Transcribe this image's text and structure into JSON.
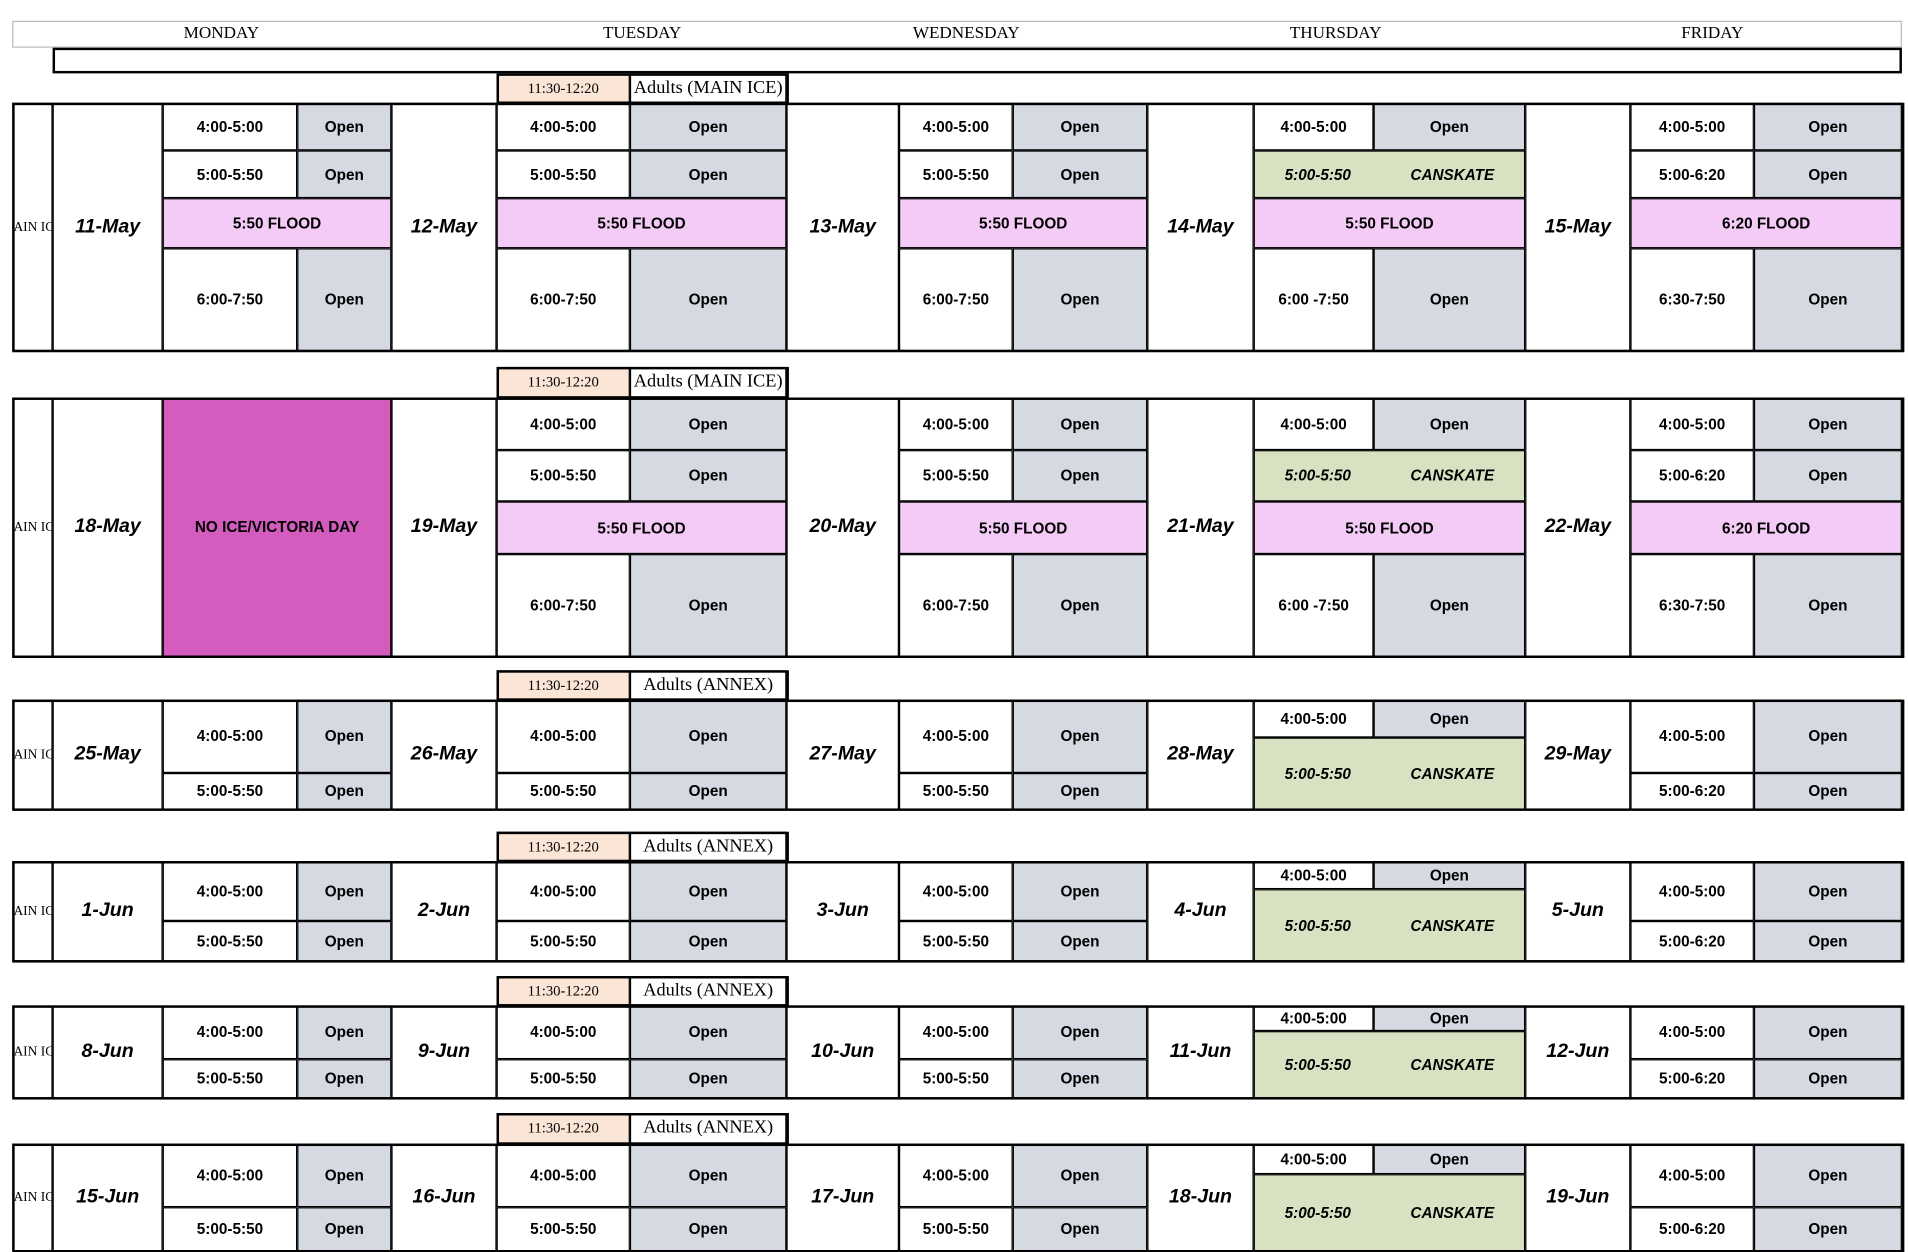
{
  "header": {
    "days": [
      "MONDAY",
      "TUESDAY",
      "WEDNESDAY",
      "THURSDAY",
      "FRIDAY"
    ]
  },
  "weeks": [
    {
      "rink": "AIN IC",
      "adults": {
        "time": "11:30-12:20",
        "label": "Adults (MAIN ICE)"
      },
      "days": [
        {
          "date": "11-May",
          "slots": [
            {
              "time": "4:00-5:00",
              "status": "Open"
            },
            {
              "time": "5:00-5:50",
              "status": "Open"
            },
            {
              "flood": "5:50 FLOOD"
            },
            {
              "time": "6:00-7:50",
              "status": "Open"
            }
          ]
        },
        {
          "date": "12-May",
          "slots": [
            {
              "time": "4:00-5:00",
              "status": "Open"
            },
            {
              "time": "5:00-5:50",
              "status": "Open"
            },
            {
              "flood": "5:50 FLOOD"
            },
            {
              "time": "6:00-7:50",
              "status": "Open"
            }
          ]
        },
        {
          "date": "13-May",
          "slots": [
            {
              "time": "4:00-5:00",
              "status": "Open"
            },
            {
              "time": "5:00-5:50",
              "status": "Open"
            },
            {
              "flood": "5:50 FLOOD"
            },
            {
              "time": "6:00-7:50",
              "status": "Open"
            }
          ]
        },
        {
          "date": "14-May",
          "slots": [
            {
              "time": "4:00-5:00",
              "status": "Open"
            },
            {
              "time": "5:00-5:50",
              "program": "CANSKATE"
            },
            {
              "flood": "5:50 FLOOD"
            },
            {
              "time": "6:00 -7:50",
              "status": "Open"
            }
          ]
        },
        {
          "date": "15-May",
          "slots": [
            {
              "time": "4:00-5:00",
              "status": "Open"
            },
            {
              "time": "5:00-6:20",
              "status": "Open"
            },
            {
              "flood": "6:20 FLOOD"
            },
            {
              "time": "6:30-7:50",
              "status": "Open"
            }
          ]
        }
      ]
    },
    {
      "rink": "AIN IC",
      "adults": {
        "time": "11:30-12:20",
        "label": "Adults (MAIN ICE)"
      },
      "days": [
        {
          "date": "18-May",
          "slots": [
            {
              "closed": "NO ICE/VICTORIA DAY"
            }
          ]
        },
        {
          "date": "19-May",
          "slots": [
            {
              "time": "4:00-5:00",
              "status": "Open"
            },
            {
              "time": "5:00-5:50",
              "status": "Open"
            },
            {
              "flood": "5:50 FLOOD"
            },
            {
              "time": "6:00-7:50",
              "status": "Open"
            }
          ]
        },
        {
          "date": "20-May",
          "slots": [
            {
              "time": "4:00-5:00",
              "status": "Open"
            },
            {
              "time": "5:00-5:50",
              "status": "Open"
            },
            {
              "flood": "5:50 FLOOD"
            },
            {
              "time": "6:00-7:50",
              "status": "Open"
            }
          ]
        },
        {
          "date": "21-May",
          "slots": [
            {
              "time": "4:00-5:00",
              "status": "Open"
            },
            {
              "time": "5:00-5:50",
              "program": "CANSKATE"
            },
            {
              "flood": "5:50 FLOOD"
            },
            {
              "time": "6:00 -7:50",
              "status": "Open"
            }
          ]
        },
        {
          "date": "22-May",
          "slots": [
            {
              "time": "4:00-5:00",
              "status": "Open"
            },
            {
              "time": "5:00-6:20",
              "status": "Open"
            },
            {
              "flood": "6:20 FLOOD"
            },
            {
              "time": "6:30-7:50",
              "status": "Open"
            }
          ]
        }
      ]
    },
    {
      "rink": "AIN IC",
      "adults": {
        "time": "11:30-12:20",
        "label": "Adults (ANNEX)"
      },
      "days": [
        {
          "date": "25-May",
          "slots": [
            {
              "time": "4:00-5:00",
              "status": "Open"
            },
            {
              "time": "5:00-5:50",
              "status": "Open"
            }
          ]
        },
        {
          "date": "26-May",
          "slots": [
            {
              "time": "4:00-5:00",
              "status": "Open"
            },
            {
              "time": "5:00-5:50",
              "status": "Open"
            }
          ]
        },
        {
          "date": "27-May",
          "slots": [
            {
              "time": "4:00-5:00",
              "status": "Open"
            },
            {
              "time": "5:00-5:50",
              "status": "Open"
            }
          ]
        },
        {
          "date": "28-May",
          "slots": [
            {
              "time": "4:00-5:00",
              "status": "Open"
            },
            {
              "time": "5:00-5:50",
              "program": "CANSKATE"
            }
          ]
        },
        {
          "date": "29-May",
          "slots": [
            {
              "time": "4:00-5:00",
              "status": "Open"
            },
            {
              "time": "5:00-6:20",
              "status": "Open"
            }
          ]
        }
      ]
    },
    {
      "rink": "AIN IC",
      "adults": {
        "time": "11:30-12:20",
        "label": "Adults (ANNEX)"
      },
      "days": [
        {
          "date": "1-Jun",
          "slots": [
            {
              "time": "4:00-5:00",
              "status": "Open"
            },
            {
              "time": "5:00-5:50",
              "status": "Open"
            }
          ]
        },
        {
          "date": "2-Jun",
          "slots": [
            {
              "time": "4:00-5:00",
              "status": "Open"
            },
            {
              "time": "5:00-5:50",
              "status": "Open"
            }
          ]
        },
        {
          "date": "3-Jun",
          "slots": [
            {
              "time": "4:00-5:00",
              "status": "Open"
            },
            {
              "time": "5:00-5:50",
              "status": "Open"
            }
          ]
        },
        {
          "date": "4-Jun",
          "slots": [
            {
              "time": "4:00-5:00",
              "status": "Open"
            },
            {
              "time": "5:00-5:50",
              "program": "CANSKATE"
            }
          ]
        },
        {
          "date": "5-Jun",
          "slots": [
            {
              "time": "4:00-5:00",
              "status": "Open"
            },
            {
              "time": "5:00-6:20",
              "status": "Open"
            }
          ]
        }
      ]
    },
    {
      "rink": "AIN IC",
      "adults": {
        "time": "11:30-12:20",
        "label": "Adults (ANNEX)"
      },
      "days": [
        {
          "date": "8-Jun",
          "slots": [
            {
              "time": "4:00-5:00",
              "status": "Open"
            },
            {
              "time": "5:00-5:50",
              "status": "Open"
            }
          ]
        },
        {
          "date": "9-Jun",
          "slots": [
            {
              "time": "4:00-5:00",
              "status": "Open"
            },
            {
              "time": "5:00-5:50",
              "status": "Open"
            }
          ]
        },
        {
          "date": "10-Jun",
          "slots": [
            {
              "time": "4:00-5:00",
              "status": "Open"
            },
            {
              "time": "5:00-5:50",
              "status": "Open"
            }
          ]
        },
        {
          "date": "11-Jun",
          "slots": [
            {
              "time": "4:00-5:00",
              "status": "Open"
            },
            {
              "time": "5:00-5:50",
              "program": "CANSKATE"
            }
          ]
        },
        {
          "date": "12-Jun",
          "slots": [
            {
              "time": "4:00-5:00",
              "status": "Open"
            },
            {
              "time": "5:00-6:20",
              "status": "Open"
            }
          ]
        }
      ]
    },
    {
      "rink": "AIN IC",
      "adults": {
        "time": "11:30-12:20",
        "label": "Adults (ANNEX)"
      },
      "days": [
        {
          "date": "15-Jun",
          "slots": [
            {
              "time": "4:00-5:00",
              "status": "Open"
            },
            {
              "time": "5:00-5:50",
              "status": "Open"
            }
          ]
        },
        {
          "date": "16-Jun",
          "slots": [
            {
              "time": "4:00-5:00",
              "status": "Open"
            },
            {
              "time": "5:00-5:50",
              "status": "Open"
            }
          ]
        },
        {
          "date": "17-Jun",
          "slots": [
            {
              "time": "4:00-5:00",
              "status": "Open"
            },
            {
              "time": "5:00-5:50",
              "status": "Open"
            }
          ]
        },
        {
          "date": "18-Jun",
          "slots": [
            {
              "time": "4:00-5:00",
              "status": "Open"
            },
            {
              "time": "5:00-5:50",
              "program": "CANSKATE"
            }
          ]
        },
        {
          "date": "19-Jun",
          "slots": [
            {
              "time": "4:00-5:00",
              "status": "Open"
            },
            {
              "time": "5:00-6:20",
              "status": "Open"
            }
          ]
        }
      ]
    }
  ]
}
